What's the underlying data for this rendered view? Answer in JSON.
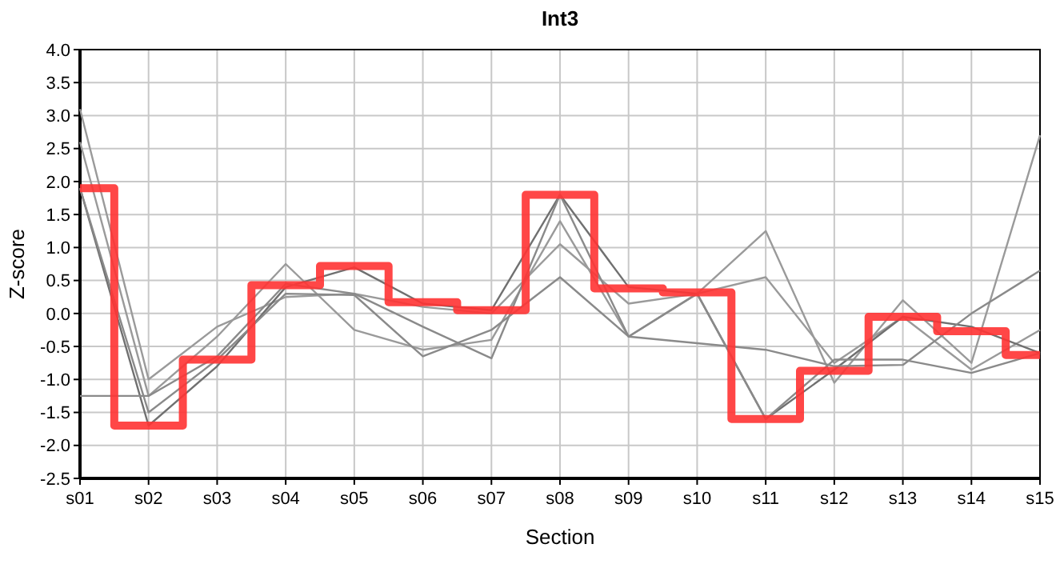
{
  "chart_data": {
    "type": "line",
    "title": "Int3",
    "xlabel": "Section",
    "ylabel": "Z-score",
    "categories": [
      "s01",
      "s02",
      "s03",
      "s04",
      "s05",
      "s06",
      "s07",
      "s08",
      "s09",
      "s10",
      "s11",
      "s12",
      "s13",
      "s14",
      "s15"
    ],
    "ylim": [
      -2.5,
      4.0
    ],
    "yticks": [
      {
        "value": -2.5,
        "label": "-2.5"
      },
      {
        "value": -2,
        "label": "-2.0"
      },
      {
        "value": -1.5,
        "label": "-1.5"
      },
      {
        "value": -1,
        "label": "-1.0"
      },
      {
        "value": -0.5,
        "label": "-0.5"
      },
      {
        "value": 0,
        "label": "0.0"
      },
      {
        "value": 0.5,
        "label": "0.5"
      },
      {
        "value": 1,
        "label": "1.0"
      },
      {
        "value": 1.5,
        "label": "1.5"
      },
      {
        "value": 2,
        "label": "2.0"
      },
      {
        "value": 2.5,
        "label": "2.5"
      },
      {
        "value": 3,
        "label": "3.0"
      },
      {
        "value": 3.5,
        "label": "3.5"
      },
      {
        "value": 4,
        "label": "4.0"
      }
    ],
    "grid": true,
    "marker": "none",
    "line_style": "solid",
    "series": [
      {
        "color": "#9a9a9a",
        "values": [
          3.1,
          -1.0,
          -0.2,
          0.25,
          0.3,
          0.1,
          0.0,
          1.05,
          0.15,
          0.3,
          1.25,
          -1.05,
          0.2,
          -0.75,
          2.7
        ]
      },
      {
        "color": "#9a9a9a",
        "values": [
          2.6,
          -1.25,
          -0.35,
          0.75,
          -0.25,
          -0.55,
          -0.4,
          1.4,
          -0.35,
          0.3,
          0.55,
          -0.75,
          -0.05,
          -0.85,
          -0.25
        ]
      },
      {
        "color": "#707070",
        "values": [
          1.9,
          -1.7,
          -0.8,
          0.4,
          0.7,
          0.15,
          0.05,
          1.8,
          0.4,
          0.3,
          -1.6,
          -0.85,
          -0.05,
          -0.2,
          -0.6
        ]
      },
      {
        "color": "#8a8a8a",
        "values": [
          -1.25,
          -1.25,
          -0.65,
          0.45,
          0.3,
          -0.2,
          -0.68,
          1.8,
          -0.35,
          -0.45,
          -0.55,
          -0.8,
          -0.78,
          0.0,
          0.65
        ]
      },
      {
        "color": "#8a8a8a",
        "values": [
          1.9,
          -1.5,
          -0.7,
          0.3,
          0.28,
          -0.65,
          -0.25,
          0.55,
          -0.35,
          0.3,
          -1.6,
          -0.7,
          -0.7,
          -0.9,
          -0.6
        ]
      },
      {
        "type": "step",
        "color": "#ff3333",
        "values": [
          1.9,
          -1.7,
          -0.7,
          0.43,
          0.72,
          0.17,
          0.05,
          1.8,
          0.38,
          0.32,
          -1.6,
          -0.87,
          -0.05,
          -0.27,
          -0.63
        ]
      }
    ]
  }
}
